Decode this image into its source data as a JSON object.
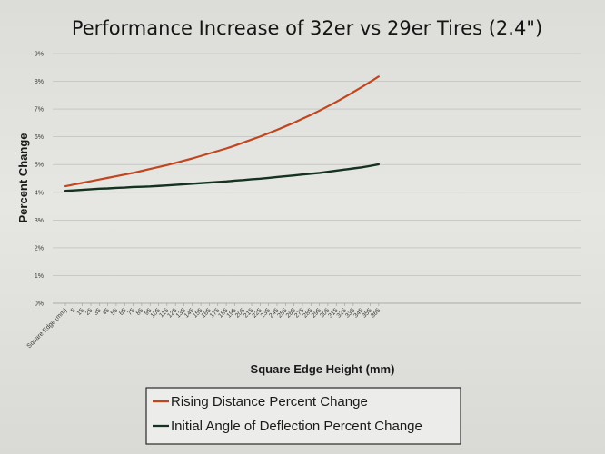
{
  "chart_data": {
    "type": "line",
    "title": "Performance Increase of 32er vs 29er Tires (2.4\")",
    "xlabel": "Square Edge Height (mm)",
    "ylabel": "Percent Change",
    "ylim": [
      0,
      9
    ],
    "y_ticks": [
      "0%",
      "1%",
      "2%",
      "3%",
      "4%",
      "5%",
      "6%",
      "7%",
      "8%",
      "9%"
    ],
    "categories": [
      "Square Edge (mm)",
      "5",
      "15",
      "25",
      "35",
      "45",
      "55",
      "65",
      "75",
      "85",
      "95",
      "105",
      "115",
      "125",
      "135",
      "145",
      "155",
      "165",
      "175",
      "185",
      "195",
      "205",
      "215",
      "225",
      "235",
      "245",
      "255",
      "265",
      "275",
      "285",
      "295",
      "305",
      "315",
      "325",
      "335",
      "345",
      "355",
      "365"
    ],
    "grid": true,
    "legend_position": "bottom",
    "series": [
      {
        "name": "Rising Distance Percent Change",
        "color": "#c0461f",
        "values": [
          4.22,
          4.28,
          4.34,
          4.4,
          4.46,
          4.52,
          4.58,
          4.64,
          4.7,
          4.77,
          4.84,
          4.91,
          4.98,
          5.06,
          5.14,
          5.22,
          5.31,
          5.4,
          5.49,
          5.58,
          5.68,
          5.79,
          5.9,
          6.01,
          6.13,
          6.25,
          6.38,
          6.51,
          6.65,
          6.79,
          6.94,
          7.1,
          7.26,
          7.43,
          7.61,
          7.79,
          7.98,
          8.17
        ]
      },
      {
        "name": "Initial Angle of Deflection Percent Change",
        "color": "#14321f",
        "values": [
          4.05,
          4.07,
          4.09,
          4.11,
          4.13,
          4.14,
          4.16,
          4.17,
          4.19,
          4.2,
          4.21,
          4.23,
          4.25,
          4.27,
          4.29,
          4.31,
          4.33,
          4.35,
          4.37,
          4.39,
          4.42,
          4.44,
          4.47,
          4.49,
          4.52,
          4.55,
          4.58,
          4.61,
          4.64,
          4.67,
          4.7,
          4.74,
          4.78,
          4.82,
          4.86,
          4.9,
          4.95,
          5.01
        ]
      }
    ]
  }
}
